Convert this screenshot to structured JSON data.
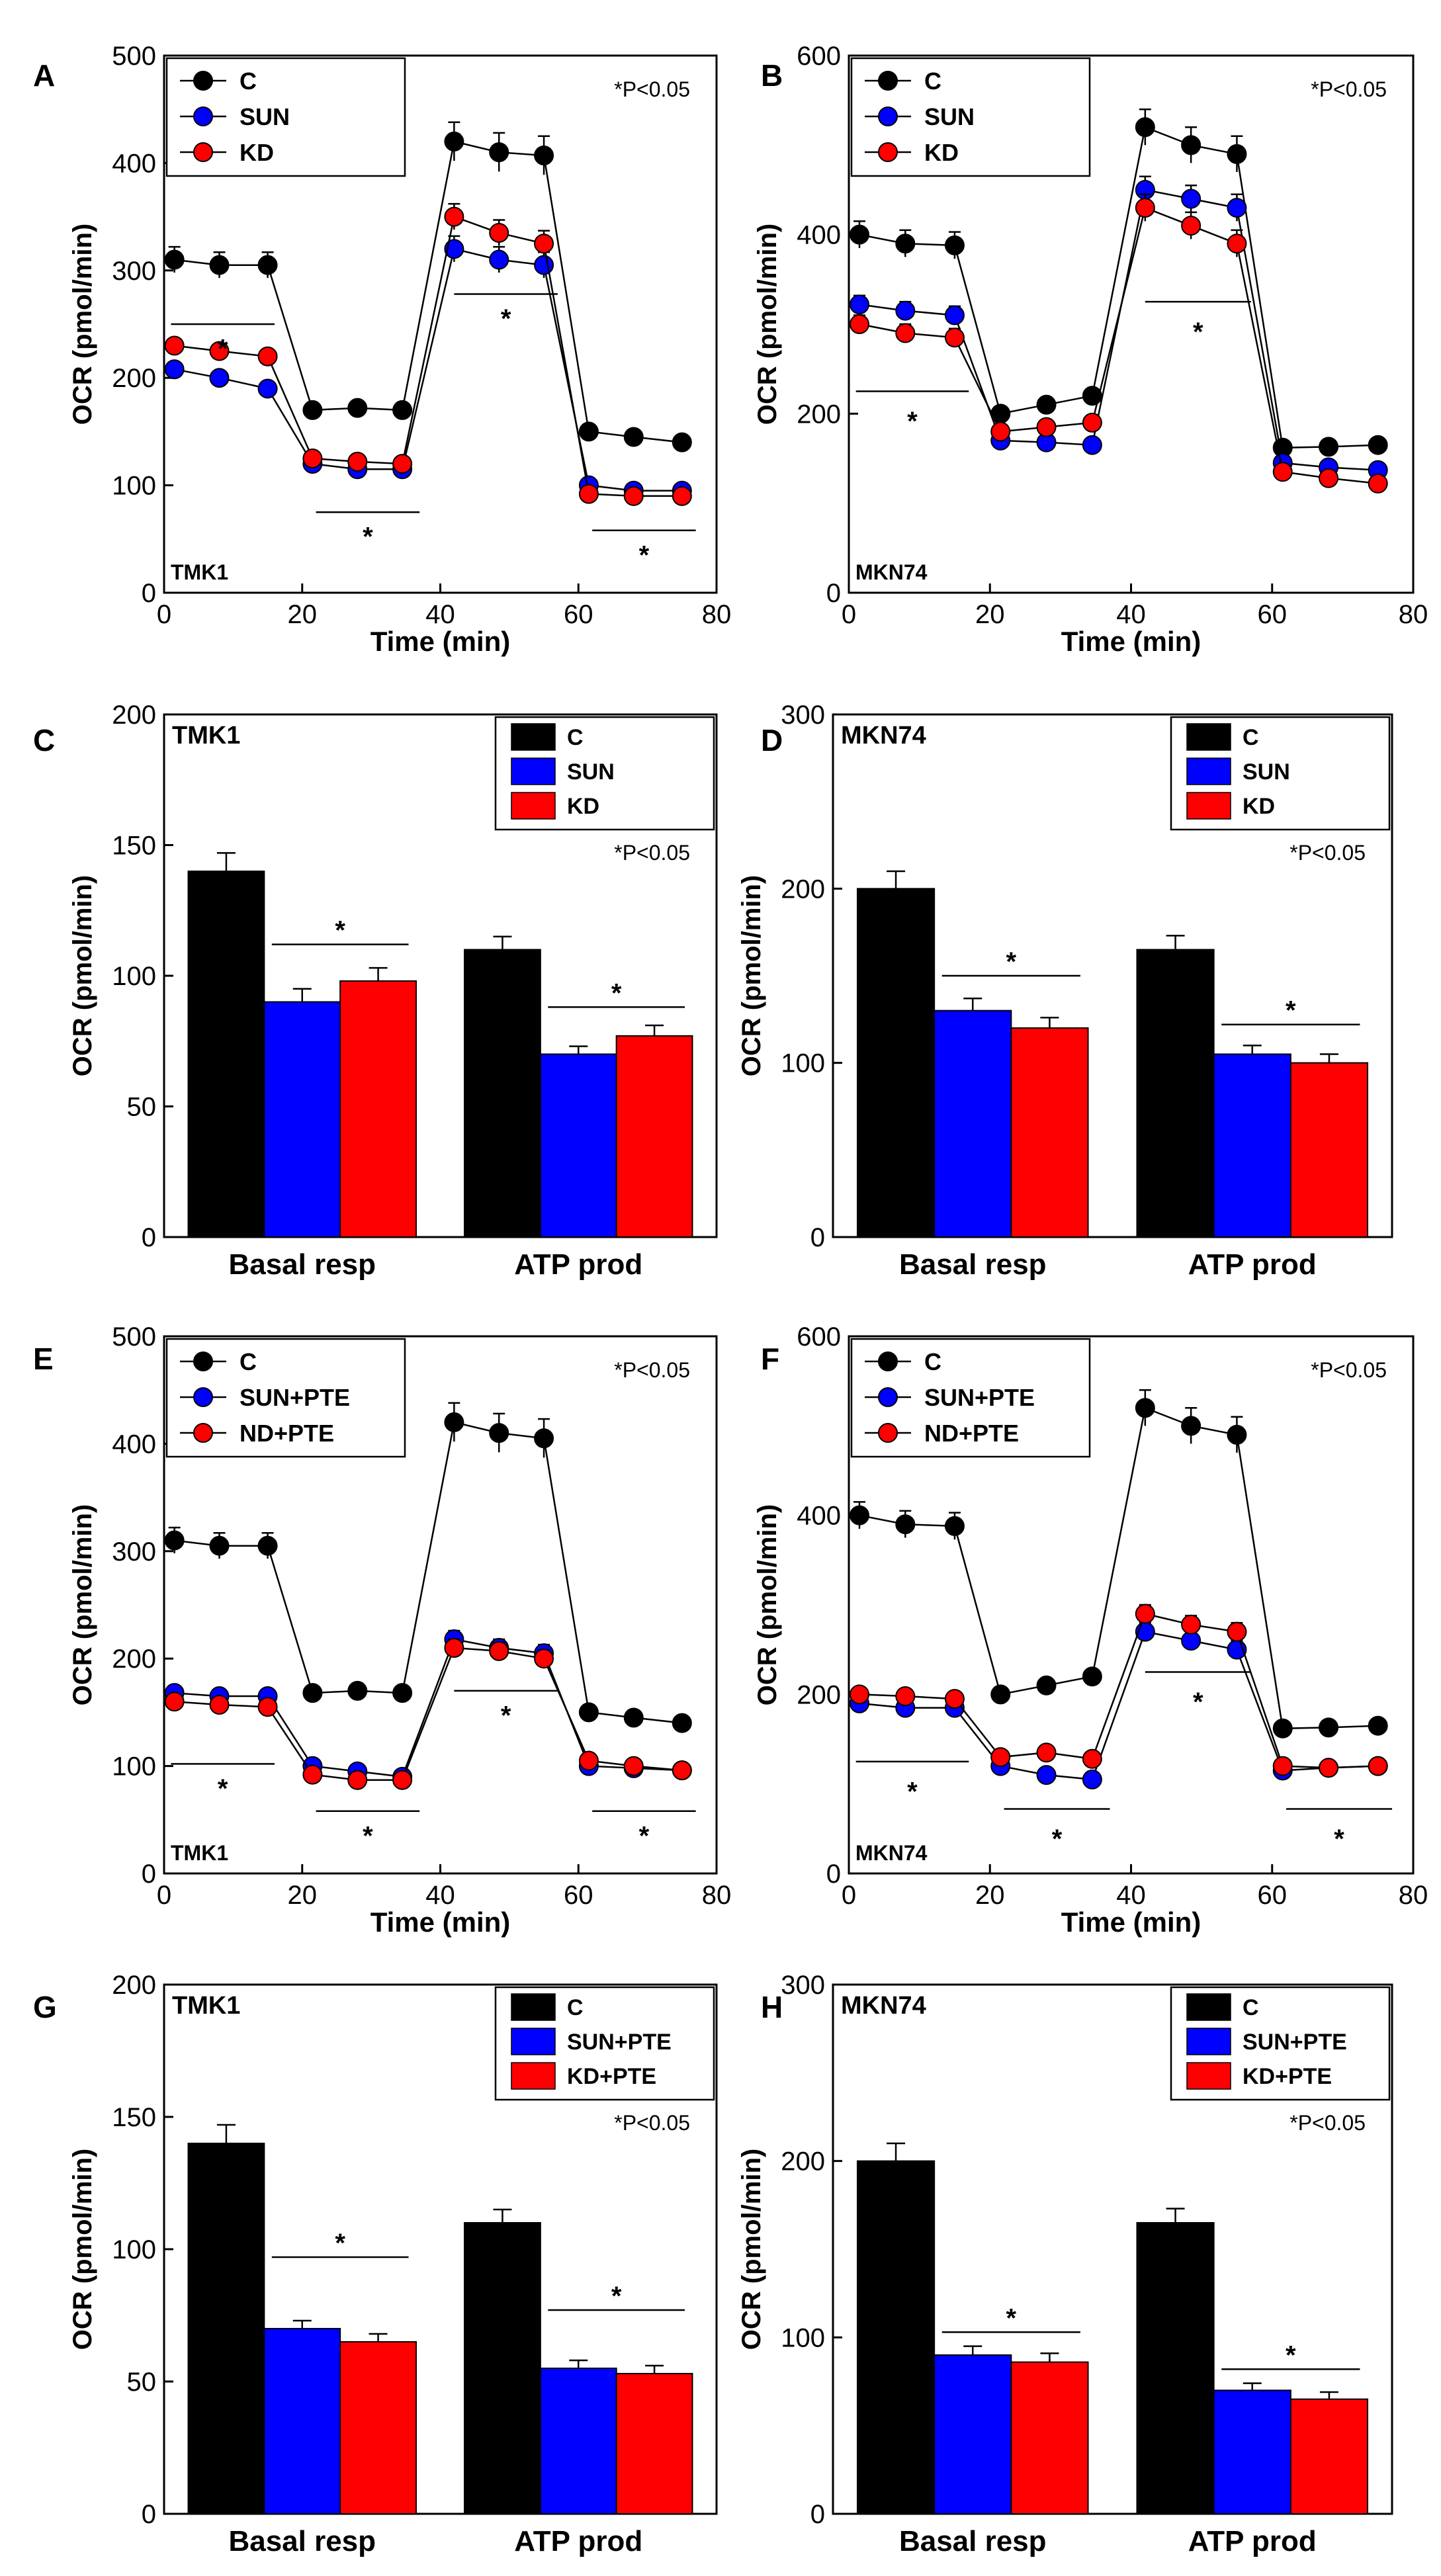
{
  "figure": {
    "significance_marker": "*"
  },
  "chart_data": [
    {
      "panel": "A",
      "type": "line",
      "annotation": "*P<0.05",
      "cell_label": "TMK1",
      "xlabel": "Time (min)",
      "ylabel": "OCR (pmol/min)",
      "xlim": [
        0,
        80
      ],
      "ylim": [
        0,
        500
      ],
      "xticks": [
        0,
        20,
        40,
        60,
        80
      ],
      "yticks": [
        0,
        100,
        200,
        300,
        400,
        500
      ],
      "legend_position": "top-left",
      "x": [
        1.5,
        8,
        15,
        21.5,
        28,
        34.5,
        42,
        48.5,
        55,
        61.5,
        68,
        75
      ],
      "series": [
        {
          "name": "C",
          "color": "#000000",
          "values": [
            310,
            305,
            305,
            170,
            172,
            170,
            420,
            410,
            407,
            150,
            145,
            140
          ],
          "errors": [
            12,
            12,
            12,
            6,
            6,
            6,
            18,
            18,
            18,
            6,
            6,
            6
          ]
        },
        {
          "name": "SUN",
          "color": "#0000ff",
          "values": [
            208,
            200,
            190,
            120,
            115,
            115,
            320,
            310,
            305,
            100,
            95,
            95
          ],
          "errors": [
            6,
            6,
            6,
            5,
            5,
            5,
            12,
            12,
            12,
            4,
            4,
            4
          ]
        },
        {
          "name": "KD",
          "color": "#ff0000",
          "values": [
            230,
            225,
            220,
            125,
            122,
            120,
            350,
            335,
            325,
            92,
            90,
            90
          ],
          "errors": [
            6,
            6,
            6,
            5,
            5,
            5,
            12,
            12,
            12,
            4,
            4,
            4
          ]
        }
      ],
      "significance": [
        {
          "x0": 1,
          "x1": 16,
          "line_y": 250,
          "star_y": 230
        },
        {
          "x0": 22,
          "x1": 37,
          "line_y": 75,
          "star_y": 55
        },
        {
          "x0": 42,
          "x1": 57,
          "line_y": 278,
          "star_y": 258
        },
        {
          "x0": 62,
          "x1": 77,
          "line_y": 58,
          "star_y": 38
        }
      ]
    },
    {
      "panel": "B",
      "type": "line",
      "annotation": "*P<0.05",
      "cell_label": "MKN74",
      "xlabel": "Time (min)",
      "ylabel": "OCR (pmol/min)",
      "xlim": [
        0,
        80
      ],
      "ylim": [
        0,
        600
      ],
      "xticks": [
        0,
        20,
        40,
        60,
        80
      ],
      "yticks": [
        0,
        200,
        400,
        600
      ],
      "legend_position": "top-left",
      "x": [
        1.5,
        8,
        15,
        21.5,
        28,
        34.5,
        42,
        48.5,
        55,
        61.5,
        68,
        75
      ],
      "series": [
        {
          "name": "C",
          "color": "#000000",
          "values": [
            400,
            390,
            388,
            200,
            210,
            220,
            520,
            500,
            490,
            162,
            163,
            165
          ],
          "errors": [
            15,
            15,
            15,
            8,
            8,
            8,
            20,
            20,
            20,
            7,
            7,
            7
          ]
        },
        {
          "name": "SUN",
          "color": "#0000ff",
          "values": [
            322,
            315,
            310,
            170,
            168,
            165,
            450,
            440,
            430,
            145,
            140,
            137
          ],
          "errors": [
            10,
            10,
            10,
            6,
            6,
            6,
            15,
            15,
            15,
            5,
            5,
            5
          ]
        },
        {
          "name": "KD",
          "color": "#ff0000",
          "values": [
            300,
            290,
            285,
            180,
            185,
            190,
            430,
            410,
            390,
            135,
            128,
            122
          ],
          "errors": [
            10,
            10,
            10,
            6,
            6,
            6,
            15,
            15,
            15,
            5,
            5,
            5
          ]
        }
      ],
      "significance": [
        {
          "x0": 1,
          "x1": 17,
          "line_y": 225,
          "star_y": 195
        },
        {
          "x0": 42,
          "x1": 57,
          "line_y": 325,
          "star_y": 295
        }
      ]
    },
    {
      "panel": "C",
      "type": "bar",
      "annotation": "*P<0.05",
      "cell_label": "TMK1",
      "ylabel": "OCR (pmol/min)",
      "ylim": [
        0,
        200
      ],
      "yticks": [
        0,
        50,
        100,
        150,
        200
      ],
      "legend_position": "top-right",
      "categories": [
        "Basal resp",
        "ATP prod"
      ],
      "series": [
        {
          "name": "C",
          "color": "#000000",
          "values": [
            140,
            110
          ],
          "errors": [
            7,
            5
          ]
        },
        {
          "name": "SUN",
          "color": "#0000ff",
          "values": [
            90,
            70
          ],
          "errors": [
            5,
            3
          ]
        },
        {
          "name": "KD",
          "color": "#ff0000",
          "values": [
            98,
            77
          ],
          "errors": [
            5,
            4
          ]
        }
      ],
      "significance": [
        {
          "category": 0,
          "line_y": 112
        },
        {
          "category": 1,
          "line_y": 88
        }
      ]
    },
    {
      "panel": "D",
      "type": "bar",
      "annotation": "*P<0.05",
      "cell_label": "MKN74",
      "ylabel": "OCR (pmol/min)",
      "ylim": [
        0,
        300
      ],
      "yticks": [
        0,
        100,
        200,
        300
      ],
      "legend_position": "top-right",
      "categories": [
        "Basal resp",
        "ATP prod"
      ],
      "series": [
        {
          "name": "C",
          "color": "#000000",
          "values": [
            200,
            165
          ],
          "errors": [
            10,
            8
          ]
        },
        {
          "name": "SUN",
          "color": "#0000ff",
          "values": [
            130,
            105
          ],
          "errors": [
            7,
            5
          ]
        },
        {
          "name": "KD",
          "color": "#ff0000",
          "values": [
            120,
            100
          ],
          "errors": [
            6,
            5
          ]
        }
      ],
      "significance": [
        {
          "category": 0,
          "line_y": 150
        },
        {
          "category": 1,
          "line_y": 122
        }
      ]
    },
    {
      "panel": "E",
      "type": "line",
      "annotation": "*P<0.05",
      "cell_label": "TMK1",
      "xlabel": "Time (min)",
      "ylabel": "OCR (pmol/min)",
      "xlim": [
        0,
        80
      ],
      "ylim": [
        0,
        500
      ],
      "xticks": [
        0,
        20,
        40,
        60,
        80
      ],
      "yticks": [
        0,
        100,
        200,
        300,
        400,
        500
      ],
      "legend_position": "top-left",
      "x": [
        1.5,
        8,
        15,
        21.5,
        28,
        34.5,
        42,
        48.5,
        55,
        61.5,
        68,
        75
      ],
      "series": [
        {
          "name": "C",
          "color": "#000000",
          "values": [
            310,
            305,
            305,
            168,
            170,
            168,
            420,
            410,
            405,
            150,
            145,
            140
          ],
          "errors": [
            12,
            12,
            12,
            6,
            6,
            6,
            18,
            18,
            18,
            6,
            6,
            6
          ]
        },
        {
          "name": "SUN+PTE",
          "color": "#0000ff",
          "values": [
            168,
            165,
            165,
            100,
            95,
            90,
            218,
            210,
            205,
            100,
            98,
            96
          ],
          "errors": [
            5,
            5,
            5,
            4,
            4,
            4,
            8,
            8,
            8,
            4,
            4,
            4
          ]
        },
        {
          "name": "ND+PTE",
          "color": "#ff0000",
          "values": [
            160,
            157,
            155,
            92,
            87,
            87,
            210,
            207,
            200,
            105,
            100,
            96
          ],
          "errors": [
            5,
            5,
            5,
            4,
            4,
            4,
            8,
            8,
            8,
            4,
            4,
            4
          ]
        }
      ],
      "significance": [
        {
          "x0": 1,
          "x1": 16,
          "line_y": 102,
          "star_y": 82
        },
        {
          "x0": 22,
          "x1": 37,
          "line_y": 58,
          "star_y": 38
        },
        {
          "x0": 42,
          "x1": 57,
          "line_y": 170,
          "star_y": 150
        },
        {
          "x0": 62,
          "x1": 77,
          "line_y": 58,
          "star_y": 38
        }
      ]
    },
    {
      "panel": "F",
      "type": "line",
      "annotation": "*P<0.05",
      "cell_label": "MKN74",
      "xlabel": "Time (min)",
      "ylabel": "OCR (pmol/min)",
      "xlim": [
        0,
        80
      ],
      "ylim": [
        0,
        600
      ],
      "xticks": [
        0,
        20,
        40,
        60,
        80
      ],
      "yticks": [
        0,
        200,
        400,
        600
      ],
      "legend_position": "top-left",
      "x": [
        1.5,
        8,
        15,
        21.5,
        28,
        34.5,
        42,
        48.5,
        55,
        61.5,
        68,
        75
      ],
      "series": [
        {
          "name": "C",
          "color": "#000000",
          "values": [
            400,
            390,
            388,
            200,
            210,
            220,
            520,
            500,
            490,
            162,
            163,
            165
          ],
          "errors": [
            15,
            15,
            15,
            8,
            8,
            8,
            20,
            20,
            20,
            7,
            7,
            7
          ]
        },
        {
          "name": "SUN+PTE",
          "color": "#0000ff",
          "values": [
            190,
            185,
            185,
            120,
            110,
            105,
            270,
            260,
            250,
            115,
            118,
            120
          ],
          "errors": [
            6,
            6,
            6,
            5,
            5,
            5,
            10,
            10,
            10,
            5,
            5,
            5
          ]
        },
        {
          "name": "ND+PTE",
          "color": "#ff0000",
          "values": [
            200,
            198,
            195,
            130,
            135,
            128,
            290,
            278,
            270,
            120,
            118,
            120
          ],
          "errors": [
            6,
            6,
            6,
            5,
            5,
            5,
            10,
            10,
            10,
            5,
            5,
            5
          ]
        }
      ],
      "significance": [
        {
          "x0": 1,
          "x1": 17,
          "line_y": 125,
          "star_y": 95
        },
        {
          "x0": 22,
          "x1": 37,
          "line_y": 72,
          "star_y": 42
        },
        {
          "x0": 42,
          "x1": 57,
          "line_y": 225,
          "star_y": 195
        },
        {
          "x0": 62,
          "x1": 77,
          "line_y": 72,
          "star_y": 42
        }
      ]
    },
    {
      "panel": "G",
      "type": "bar",
      "annotation": "*P<0.05",
      "cell_label": "TMK1",
      "ylabel": "OCR (pmol/min)",
      "ylim": [
        0,
        200
      ],
      "yticks": [
        0,
        50,
        100,
        150,
        200
      ],
      "legend_position": "top-right",
      "categories": [
        "Basal resp",
        "ATP prod"
      ],
      "series": [
        {
          "name": "C",
          "color": "#000000",
          "values": [
            140,
            110
          ],
          "errors": [
            7,
            5
          ]
        },
        {
          "name": "SUN+PTE",
          "color": "#0000ff",
          "values": [
            70,
            55
          ],
          "errors": [
            3,
            3
          ]
        },
        {
          "name": "KD+PTE",
          "color": "#ff0000",
          "values": [
            65,
            53
          ],
          "errors": [
            3,
            3
          ]
        }
      ],
      "significance": [
        {
          "category": 0,
          "line_y": 97
        },
        {
          "category": 1,
          "line_y": 77
        }
      ]
    },
    {
      "panel": "H",
      "type": "bar",
      "annotation": "*P<0.05",
      "cell_label": "MKN74",
      "ylabel": "OCR (pmol/min)",
      "ylim": [
        0,
        300
      ],
      "yticks": [
        0,
        100,
        200,
        300
      ],
      "legend_position": "top-right",
      "categories": [
        "Basal resp",
        "ATP prod"
      ],
      "series": [
        {
          "name": "C",
          "color": "#000000",
          "values": [
            200,
            165
          ],
          "errors": [
            10,
            8
          ]
        },
        {
          "name": "SUN+PTE",
          "color": "#0000ff",
          "values": [
            90,
            70
          ],
          "errors": [
            5,
            4
          ]
        },
        {
          "name": "KD+PTE",
          "color": "#ff0000",
          "values": [
            86,
            65
          ],
          "errors": [
            5,
            4
          ]
        }
      ],
      "significance": [
        {
          "category": 0,
          "line_y": 103
        },
        {
          "category": 1,
          "line_y": 82
        }
      ]
    }
  ]
}
